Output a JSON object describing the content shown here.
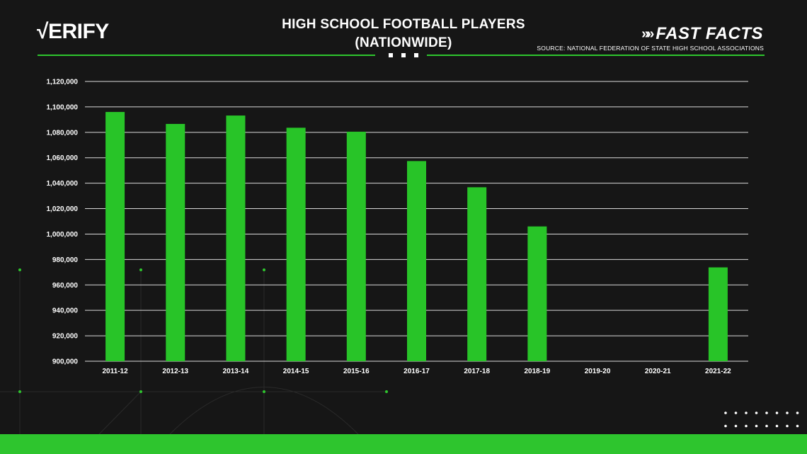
{
  "header": {
    "logo_mark": "√",
    "logo_text": "ERIFY",
    "title_line1": "HIGH SCHOOL FOOTBALL PLAYERS",
    "title_line2": "(NATIONWIDE)",
    "brand_arrows": "»»",
    "brand": "FAST FACTS",
    "source": "SOURCE: NATIONAL FEDERATION OF STATE HIGH SCHOOL ASSOCIATIONS"
  },
  "colors": {
    "bar": "#28c428",
    "accent": "#2ec52e",
    "background": "#161616",
    "grid": "#d9d9d9"
  },
  "chart_data": {
    "type": "bar",
    "title": "HIGH SCHOOL FOOTBALL PLAYERS (NATIONWIDE)",
    "xlabel": "",
    "ylabel": "",
    "categories": [
      "2011-12",
      "2012-13",
      "2013-14",
      "2014-15",
      "2015-16",
      "2016-17",
      "2017-18",
      "2018-19",
      "2019-20",
      "2020-21",
      "2021-22"
    ],
    "values": [
      1096000,
      1086600,
      1093200,
      1083600,
      1080500,
      1057400,
      1036800,
      1006000,
      null,
      null,
      973800
    ],
    "ylim": [
      900000,
      1120000
    ],
    "yticks": [
      900000,
      920000,
      940000,
      960000,
      980000,
      1000000,
      1020000,
      1040000,
      1060000,
      1080000,
      1100000,
      1120000
    ],
    "ytick_labels": [
      "900,000",
      "920,000",
      "940,000",
      "960,000",
      "980,000",
      "1,000,000",
      "1,020,000",
      "1,040,000",
      "1,060,000",
      "1,080,000",
      "1,100,000",
      "1,120,000"
    ],
    "grid": true,
    "legend": "none"
  }
}
